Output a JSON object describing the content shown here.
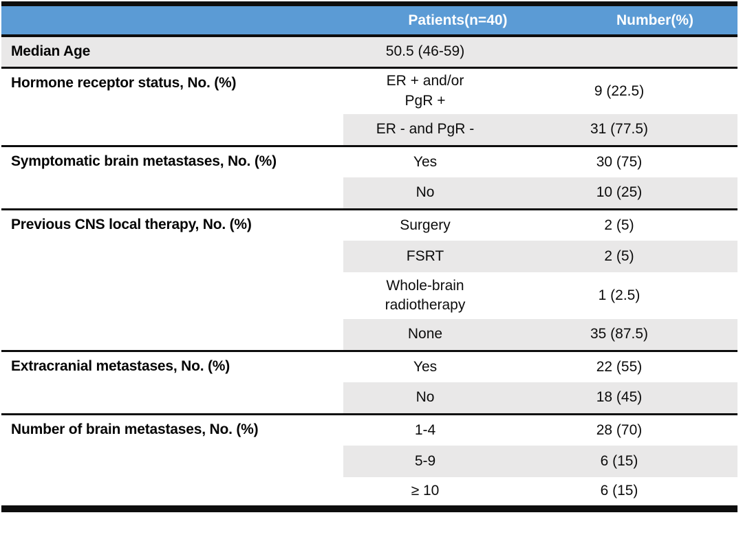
{
  "table": {
    "columns": [
      {
        "label": ""
      },
      {
        "label": "Patients(n=40)"
      },
      {
        "label": "Number(%)"
      }
    ],
    "groups": [
      {
        "category": "Median Age",
        "rows": [
          {
            "patients": "50.5 (46-59)",
            "number": "",
            "shaded": true,
            "shade_category": true
          }
        ]
      },
      {
        "category": "Hormone receptor status, No. (%)",
        "rows": [
          {
            "patients": "ER + and/or\nPgR +",
            "number": "9 (22.5)",
            "shaded": false
          },
          {
            "patients": "ER - and PgR -",
            "number": "31 (77.5)",
            "shaded": true
          }
        ]
      },
      {
        "category": "Symptomatic brain metastases, No. (%)",
        "rows": [
          {
            "patients": "Yes",
            "number": "30 (75)",
            "shaded": false
          },
          {
            "patients": "No",
            "number": "10 (25)",
            "shaded": true
          }
        ]
      },
      {
        "category": "Previous CNS local therapy, No. (%)",
        "rows": [
          {
            "patients": "Surgery",
            "number": "2 (5)",
            "shaded": false
          },
          {
            "patients": "FSRT",
            "number": "2 (5)",
            "shaded": true
          },
          {
            "patients": "Whole-brain\nradiotherapy",
            "number": "1 (2.5)",
            "shaded": false
          },
          {
            "patients": "None",
            "number": "35 (87.5)",
            "shaded": true
          }
        ]
      },
      {
        "category": "Extracranial metastases, No. (%)",
        "rows": [
          {
            "patients": "Yes",
            "number": "22 (55)",
            "shaded": false
          },
          {
            "patients": "No",
            "number": "18 (45)",
            "shaded": true
          }
        ]
      },
      {
        "category": "Number of brain metastases, No. (%)",
        "rows": [
          {
            "patients": "1-4",
            "number": "28 (70)",
            "shaded": false
          },
          {
            "patients": "5-9",
            "number": "6 (15)",
            "shaded": true
          },
          {
            "patients": "≥ 10",
            "number": "6 (15)",
            "shaded": false
          }
        ]
      }
    ]
  },
  "colors": {
    "header_bg": "#5B9BD5",
    "header_text": "#FFFFFF",
    "row_shade": "#E9E8E8",
    "border_black": "#0D0D0D"
  }
}
